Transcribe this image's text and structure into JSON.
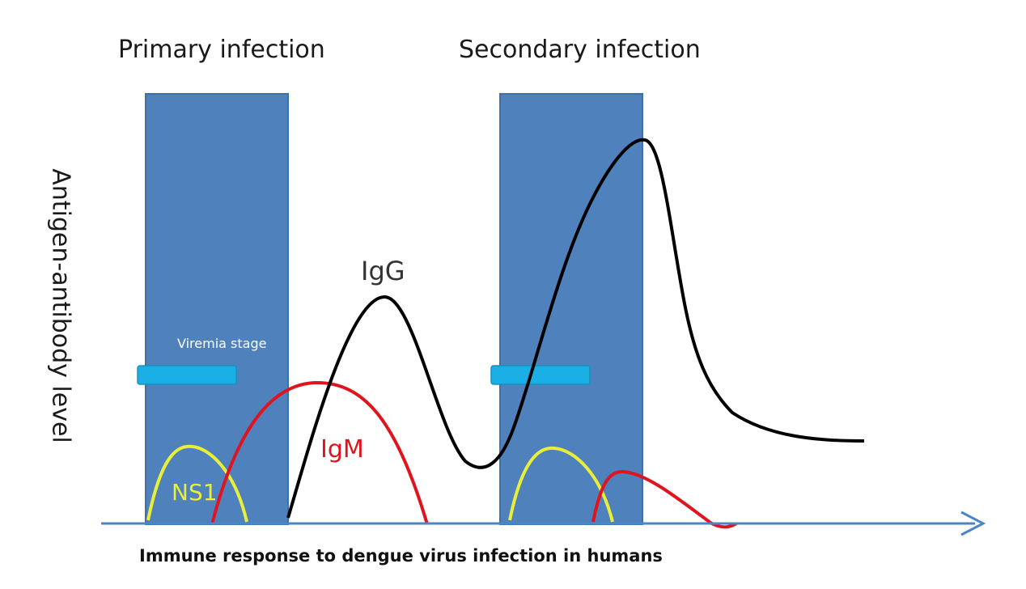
{
  "labels": {
    "primary": "Primary infection",
    "secondary": "Secondary infection",
    "y_axis": "Antigen-antibody level",
    "caption": "Immune response to dengue virus infection in humans",
    "viremia": "Viremia stage",
    "igg": "IgG",
    "igm": "IgM",
    "ns1": "NS1"
  },
  "colors": {
    "infection_block": "#4f81bd",
    "viremia_bar": "#1ab0e6",
    "igg_curve": "#000000",
    "igm_curve": "#e0141e",
    "ns1_curve": "#e9ef38",
    "axis": "#4a86c5"
  },
  "curves": [
    "IgG",
    "IgM",
    "NS1"
  ]
}
